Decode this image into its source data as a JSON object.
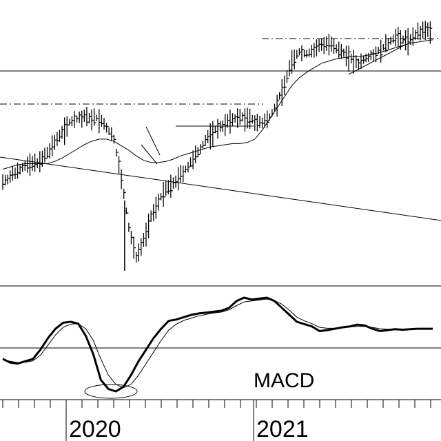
{
  "chart_data": [
    {
      "type": "ohlc",
      "title": "",
      "xlabel": "",
      "ylabel": "",
      "grid": false,
      "legend": "none",
      "x_tick_labels": [
        "2020",
        "2021"
      ],
      "colors": {
        "bars": "#000000",
        "background": "#ffffff"
      },
      "series": [
        {
          "kind": "price",
          "approx_close": [
            0.22,
            0.26,
            0.32,
            0.36,
            0.38,
            0.4,
            0.47,
            0.57,
            0.67,
            0.75,
            0.78,
            0.8,
            0.79,
            0.78,
            0.7,
            0.6,
            0.25,
            -0.2,
            -0.45,
            -0.3,
            -0.1,
            0.05,
            0.15,
            0.2,
            0.28,
            0.35,
            0.45,
            0.55,
            0.65,
            0.7,
            0.74,
            0.78,
            0.8,
            0.79,
            0.76,
            0.74,
            0.8,
            0.92,
            1.1,
            1.3,
            1.38,
            1.36,
            1.4,
            1.45,
            1.46,
            1.4,
            1.38,
            1.32,
            1.28,
            1.33,
            1.36,
            1.4,
            1.46,
            1.52,
            1.49,
            1.5,
            1.55,
            1.58,
            1.57
          ]
        },
        {
          "kind": "moving-average",
          "approx_values": [
            0.33,
            0.35,
            0.37,
            0.38,
            0.38,
            0.38,
            0.38,
            0.4,
            0.43,
            0.47,
            0.51,
            0.55,
            0.58,
            0.6,
            0.6,
            0.58,
            0.54,
            0.5,
            0.45,
            0.41,
            0.39,
            0.39,
            0.4,
            0.42,
            0.45,
            0.47,
            0.49,
            0.51,
            0.53,
            0.54,
            0.55,
            0.56,
            0.56,
            0.57,
            0.6,
            0.68,
            0.78,
            0.88,
            0.98,
            1.08,
            1.15,
            1.2,
            1.24,
            1.28,
            1.3,
            1.32,
            1.33,
            1.34,
            1.34,
            1.35,
            1.36,
            1.38,
            1.4,
            1.42,
            1.44,
            1.46,
            1.47,
            1.48,
            1.49
          ]
        }
      ],
      "overlays": [
        {
          "kind": "trendline",
          "from": [
            0,
            0.26
          ],
          "to": [
            58,
            -0.04
          ]
        },
        {
          "kind": "resistance-dashdot",
          "from": [
            0,
            0.85
          ],
          "to": [
            25,
            0.85
          ]
        },
        {
          "kind": "resistance-dashdot",
          "from": [
            25,
            1.45
          ],
          "to": [
            58,
            1.45
          ]
        },
        {
          "kind": "horizontal",
          "from": [
            0,
            1.25
          ],
          "to": [
            58,
            1.25
          ]
        },
        {
          "kind": "support",
          "from": [
            15,
            0.66
          ],
          "to": [
            23,
            0.66
          ]
        }
      ]
    },
    {
      "type": "line",
      "title": "MACD",
      "xlabel": "",
      "ylabel": "",
      "grid": false,
      "legend": "none",
      "series": [
        {
          "kind": "macd-line",
          "approx_values": [
            0.1,
            0.02,
            0.0,
            0.05,
            0.1,
            0.3,
            0.55,
            0.75,
            0.88,
            0.9,
            0.86,
            0.6,
            0.2,
            -0.35,
            -0.55,
            -0.6,
            -0.5,
            -0.25,
            0.05,
            0.3,
            0.55,
            0.75,
            0.92,
            0.95,
            1.0,
            1.05,
            1.08,
            1.1,
            1.12,
            1.14,
            1.2,
            1.35,
            1.42,
            1.38,
            1.4,
            1.42,
            1.35,
            1.2,
            1.05,
            0.9,
            0.85,
            0.8,
            0.7,
            0.72,
            0.75,
            0.78,
            0.8,
            0.84,
            0.82,
            0.75,
            0.7,
            0.72,
            0.74,
            0.73,
            0.74,
            0.75,
            0.75,
            0.75
          ]
        },
        {
          "kind": "signal-line",
          "approx_values": [
            0.08,
            0.05,
            0.02,
            0.03,
            0.06,
            0.18,
            0.4,
            0.62,
            0.78,
            0.85,
            0.86,
            0.75,
            0.5,
            0.1,
            -0.25,
            -0.45,
            -0.52,
            -0.45,
            -0.25,
            0.0,
            0.25,
            0.5,
            0.72,
            0.85,
            0.93,
            0.98,
            1.03,
            1.06,
            1.09,
            1.11,
            1.16,
            1.25,
            1.33,
            1.35,
            1.37,
            1.39,
            1.36,
            1.28,
            1.15,
            1.0,
            0.92,
            0.86,
            0.78,
            0.76,
            0.76,
            0.77,
            0.79,
            0.8,
            0.8,
            0.78,
            0.75,
            0.74,
            0.74,
            0.74,
            0.74,
            0.75,
            0.75,
            0.75
          ]
        }
      ],
      "zero_line": 0.1
    }
  ]
}
